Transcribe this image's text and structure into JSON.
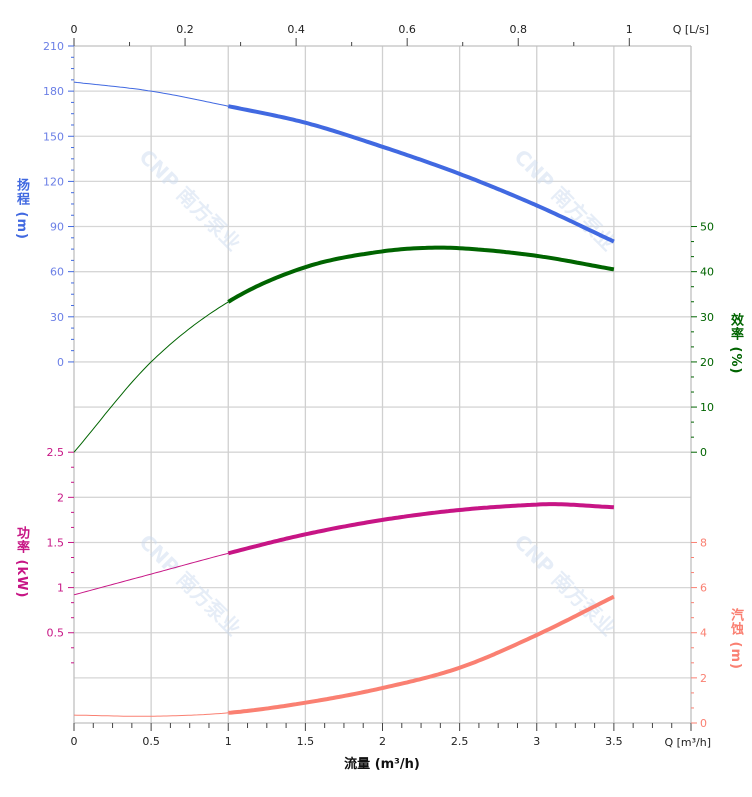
{
  "chart_data": {
    "type": "line",
    "title": "",
    "watermark": "CNP 南方泵业",
    "x_axis": {
      "label": "流量 (m³/h)",
      "unit_label": "Q [m³/h]",
      "range": [
        0,
        4
      ],
      "ticks": [
        "0",
        "0.5",
        "1",
        "1.5",
        "2",
        "2.5",
        "3",
        "3.5"
      ]
    },
    "x2_axis": {
      "unit_label": "Q [L/s]",
      "range": [
        0,
        1.1111
      ],
      "ticks": [
        "0",
        "0.2",
        "0.4",
        "0.6",
        "0.8",
        "1"
      ]
    },
    "y_axes": {
      "head": {
        "label": "扬程 (m)",
        "ticks": [
          "210",
          "180",
          "150",
          "120",
          "90",
          "60",
          "30",
          "0"
        ],
        "color": "#4169E1"
      },
      "efficiency": {
        "label": "效率 (%)",
        "ticks": [
          "50",
          "40",
          "30",
          "20",
          "10",
          "0"
        ],
        "color": "#006400"
      },
      "power": {
        "label": "功率 (kW)",
        "ticks": [
          "2.5",
          "2",
          "1.5",
          "1",
          "0.5"
        ],
        "color": "#C71585"
      },
      "npsh": {
        "label": "汽蚀 (m)",
        "ticks": [
          "8",
          "6",
          "4",
          "2",
          "0"
        ],
        "color": "#FA8072"
      }
    },
    "grid": true,
    "operating_range": [
      1,
      3.5
    ],
    "series": [
      {
        "axis": "head",
        "color": "#4169E1",
        "x": [
          0,
          0.5,
          1,
          1.5,
          2,
          2.5,
          3,
          3.5
        ],
        "y": [
          186,
          180,
          170,
          159,
          143,
          125,
          104,
          80
        ]
      },
      {
        "axis": "efficiency",
        "color": "#006400",
        "x": [
          0,
          0.5,
          1,
          1.5,
          2,
          2.3,
          2.5,
          3,
          3.5
        ],
        "y": [
          0,
          20,
          33.3,
          41,
          44.5,
          45.3,
          45.2,
          43.5,
          40.5
        ]
      },
      {
        "axis": "power",
        "color": "#C71585",
        "x": [
          0,
          0.5,
          1,
          1.5,
          2,
          2.5,
          3,
          3.1,
          3.5
        ],
        "y": [
          0.92,
          1.15,
          1.38,
          1.59,
          1.75,
          1.86,
          1.92,
          1.925,
          1.89
        ]
      },
      {
        "axis": "npsh",
        "color": "#FA8072",
        "x": [
          0,
          0.5,
          1,
          1.5,
          2,
          2.5,
          3,
          3.5
        ],
        "y": [
          0.35,
          0.3,
          0.45,
          0.9,
          1.55,
          2.45,
          3.9,
          5.6
        ]
      }
    ]
  }
}
